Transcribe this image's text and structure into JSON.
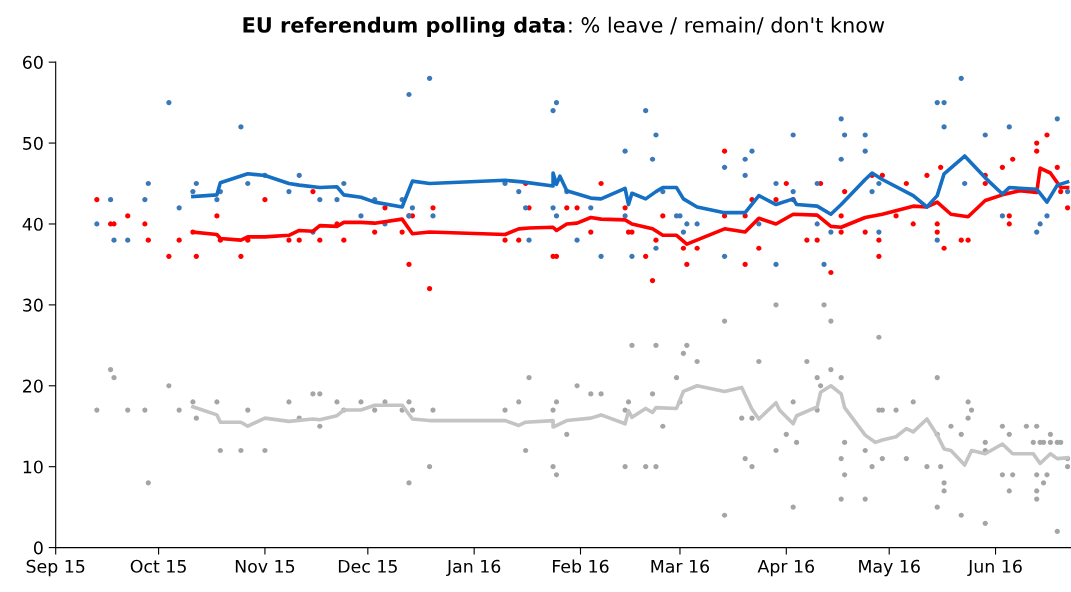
{
  "chart_data": {
    "type": "line",
    "title": "EU referendum polling data: % leave / remain/ don't know",
    "xlim": [
      "2015-09-01",
      "2016-06-23"
    ],
    "xticks": [
      {
        "value": "2015-09-01",
        "label": "Sep 15"
      },
      {
        "value": "2015-10-01",
        "label": "Oct 15"
      },
      {
        "value": "2015-11-01",
        "label": "Nov 15"
      },
      {
        "value": "2015-12-01",
        "label": "Dec 15"
      },
      {
        "value": "2016-01-01",
        "label": "Jan 16"
      },
      {
        "value": "2016-02-01",
        "label": "Feb 16"
      },
      {
        "value": "2016-03-01",
        "label": "Mar 16"
      },
      {
        "value": "2016-04-01",
        "label": "Apr 16"
      },
      {
        "value": "2016-05-01",
        "label": "May 16"
      },
      {
        "value": "2016-06-01",
        "label": "Jun 16"
      }
    ],
    "ylim": [
      0,
      60
    ],
    "yticks": [
      0,
      10,
      20,
      30,
      40,
      50,
      60
    ],
    "series": [
      {
        "type": "scatter",
        "marker": "circle",
        "color": "#ff0000",
        "x": [
          "2015-09-13",
          "2015-09-17",
          "2015-09-18",
          "2015-09-22",
          "2015-09-27",
          "2015-09-28",
          "2015-10-04",
          "2015-10-07",
          "2015-10-11",
          "2015-10-12",
          "2015-10-18",
          "2015-10-19",
          "2015-10-25",
          "2015-10-27",
          "2015-11-01",
          "2015-11-08",
          "2015-11-11",
          "2015-11-15",
          "2015-11-17",
          "2015-11-22",
          "2015-11-24",
          "2015-12-03",
          "2015-12-06",
          "2015-12-11",
          "2015-12-13",
          "2015-12-13",
          "2015-12-14",
          "2015-12-19",
          "2015-12-20",
          "2016-01-10",
          "2016-01-14",
          "2016-01-16",
          "2016-01-17",
          "2016-01-24",
          "2016-01-25",
          "2016-01-28",
          "2016-01-31",
          "2016-02-04",
          "2016-02-07",
          "2016-02-14",
          "2016-02-15",
          "2016-02-16",
          "2016-02-20",
          "2016-02-22",
          "2016-02-23",
          "2016-02-25",
          "2016-03-02",
          "2016-03-03",
          "2016-03-06",
          "2016-03-14",
          "2016-03-14",
          "2016-03-20",
          "2016-03-20",
          "2016-03-22",
          "2016-03-24",
          "2016-03-29",
          "2016-04-01",
          "2016-04-03",
          "2016-04-07",
          "2016-04-10",
          "2016-04-11",
          "2016-04-14",
          "2016-04-17",
          "2016-04-17",
          "2016-04-18",
          "2016-04-24",
          "2016-04-26",
          "2016-04-28",
          "2016-04-28",
          "2016-04-29",
          "2016-05-03",
          "2016-05-06",
          "2016-05-08",
          "2016-05-12",
          "2016-05-15",
          "2016-05-15",
          "2016-05-16",
          "2016-05-17",
          "2016-05-22",
          "2016-05-24",
          "2016-05-29",
          "2016-05-29",
          "2016-06-03",
          "2016-06-06",
          "2016-06-05",
          "2016-06-05",
          "2016-06-13",
          "2016-06-13",
          "2016-06-16",
          "2016-06-19",
          "2016-06-20",
          "2016-06-22"
        ],
        "values": [
          43,
          40,
          40,
          41,
          40,
          38,
          36,
          38,
          39,
          36,
          41,
          38,
          36,
          38,
          43,
          38,
          38,
          44,
          38,
          40,
          38,
          39,
          42,
          39,
          41,
          35,
          41,
          32,
          42,
          38,
          38,
          45,
          42,
          36,
          36,
          42,
          42,
          39,
          45,
          42,
          39,
          39,
          36,
          33,
          38,
          41,
          37,
          35,
          37,
          49,
          41,
          41,
          35,
          43,
          37,
          43,
          45,
          43,
          38,
          38,
          45,
          34,
          41,
          39,
          44,
          39,
          46,
          36,
          38,
          46,
          41,
          45,
          40,
          46,
          39,
          40,
          47,
          37,
          38,
          38,
          46,
          45,
          47,
          48,
          41,
          40,
          50,
          49,
          51,
          47,
          44,
          42
        ]
      },
      {
        "type": "scatter",
        "marker": "circle",
        "color": "#3a78b8",
        "x": [
          "2015-09-13",
          "2015-09-17",
          "2015-09-18",
          "2015-09-22",
          "2015-09-27",
          "2015-09-28",
          "2015-10-04",
          "2015-10-07",
          "2015-10-11",
          "2015-10-12",
          "2015-10-18",
          "2015-10-19",
          "2015-10-25",
          "2015-10-27",
          "2015-11-01",
          "2015-11-08",
          "2015-11-11",
          "2015-11-15",
          "2015-11-17",
          "2015-11-22",
          "2015-11-24",
          "2015-11-29",
          "2015-12-03",
          "2015-12-06",
          "2015-12-11",
          "2015-12-13",
          "2015-12-13",
          "2015-12-14",
          "2015-12-19",
          "2015-12-20",
          "2016-01-10",
          "2016-01-14",
          "2016-01-16",
          "2016-01-17",
          "2016-01-24",
          "2016-01-25",
          "2016-01-24",
          "2016-01-25",
          "2016-01-28",
          "2016-01-31",
          "2016-02-04",
          "2016-02-07",
          "2016-02-14",
          "2016-02-14",
          "2016-02-16",
          "2016-02-20",
          "2016-02-22",
          "2016-02-23",
          "2016-02-23",
          "2016-02-25",
          "2016-02-29",
          "2016-03-01",
          "2016-03-02",
          "2016-03-03",
          "2016-03-06",
          "2016-03-14",
          "2016-03-14",
          "2016-03-20",
          "2016-03-20",
          "2016-03-22",
          "2016-03-24",
          "2016-03-29",
          "2016-03-29",
          "2016-04-03",
          "2016-04-03",
          "2016-04-10",
          "2016-04-10",
          "2016-04-12",
          "2016-04-14",
          "2016-04-17",
          "2016-04-17",
          "2016-04-18",
          "2016-04-24",
          "2016-04-24",
          "2016-04-26",
          "2016-04-28",
          "2016-04-28",
          "2016-05-15",
          "2016-05-17",
          "2016-05-17",
          "2016-05-15",
          "2016-05-22",
          "2016-05-23",
          "2016-05-29",
          "2016-06-03",
          "2016-06-05",
          "2016-06-13",
          "2016-06-14",
          "2016-06-16",
          "2016-06-19",
          "2016-06-22"
        ],
        "values": [
          40,
          43,
          38,
          38,
          43,
          45,
          55,
          42,
          44,
          45,
          43,
          44,
          52,
          45,
          46,
          44,
          46,
          39,
          43,
          43,
          45,
          41,
          43,
          40,
          43,
          56,
          41,
          42,
          58,
          41,
          45,
          44,
          42,
          38,
          54,
          55,
          42,
          41,
          44,
          38,
          42,
          36,
          49,
          41,
          36,
          54,
          48,
          51,
          37,
          44,
          41,
          41,
          39,
          40,
          40,
          47,
          36,
          48,
          46,
          49,
          40,
          45,
          35,
          51,
          44,
          45,
          40,
          35,
          39,
          53,
          48,
          51,
          51,
          49,
          44,
          45,
          39,
          55,
          55,
          52,
          38,
          58,
          45,
          51,
          41,
          52,
          39,
          40,
          41,
          53,
          44
        ]
      },
      {
        "type": "scatter",
        "marker": "circle",
        "color": "#a5a5a5",
        "x": [
          "2015-09-13",
          "2015-09-17",
          "2015-09-18",
          "2015-09-22",
          "2015-09-27",
          "2015-09-28",
          "2015-10-04",
          "2015-10-07",
          "2015-10-11",
          "2015-10-12",
          "2015-10-18",
          "2015-10-19",
          "2015-10-25",
          "2015-10-27",
          "2015-11-01",
          "2015-11-08",
          "2015-11-11",
          "2015-11-15",
          "2015-11-17",
          "2015-11-17",
          "2015-11-22",
          "2015-11-24",
          "2015-11-29",
          "2015-12-03",
          "2015-12-06",
          "2015-12-11",
          "2015-12-13",
          "2015-12-13",
          "2015-12-14",
          "2015-12-19",
          "2015-12-20",
          "2016-01-10",
          "2016-01-14",
          "2016-01-16",
          "2016-01-17",
          "2016-01-24",
          "2016-01-24",
          "2016-01-25",
          "2016-01-25",
          "2016-01-28",
          "2016-01-31",
          "2016-02-04",
          "2016-02-07",
          "2016-02-14",
          "2016-02-14",
          "2016-02-15",
          "2016-02-16",
          "2016-02-20",
          "2016-02-22",
          "2016-02-23",
          "2016-02-23",
          "2016-02-25",
          "2016-02-29",
          "2016-03-01",
          "2016-03-02",
          "2016-03-03",
          "2016-03-06",
          "2016-03-14",
          "2016-03-14",
          "2016-03-19",
          "2016-03-20",
          "2016-03-22",
          "2016-03-22",
          "2016-03-24",
          "2016-03-29",
          "2016-03-29",
          "2016-04-01",
          "2016-04-03",
          "2016-04-03",
          "2016-04-04",
          "2016-04-07",
          "2016-04-10",
          "2016-04-10",
          "2016-04-11",
          "2016-04-12",
          "2016-04-14",
          "2016-04-14",
          "2016-04-17",
          "2016-04-17",
          "2016-04-17",
          "2016-04-18",
          "2016-04-18",
          "2016-04-24",
          "2016-04-24",
          "2016-04-26",
          "2016-04-28",
          "2016-04-28",
          "2016-04-29",
          "2016-04-29",
          "2016-05-03",
          "2016-05-06",
          "2016-05-08",
          "2016-05-12",
          "2016-05-15",
          "2016-05-15",
          "2016-05-15",
          "2016-05-16",
          "2016-05-17",
          "2016-05-17",
          "2016-05-19",
          "2016-05-22",
          "2016-05-22",
          "2016-05-24",
          "2016-05-24",
          "2016-05-25",
          "2016-05-29",
          "2016-05-29",
          "2016-05-29",
          "2016-06-03",
          "2016-06-03",
          "2016-06-05",
          "2016-06-05",
          "2016-06-06",
          "2016-06-10",
          "2016-06-12",
          "2016-06-13",
          "2016-06-13",
          "2016-06-13",
          "2016-06-13",
          "2016-06-14",
          "2016-06-15",
          "2016-06-15",
          "2016-06-16",
          "2016-06-17",
          "2016-06-17",
          "2016-06-19",
          "2016-06-20",
          "2016-06-19",
          "2016-06-22",
          "2016-06-22"
        ],
        "values": [
          17,
          22,
          21,
          17,
          17,
          8,
          20,
          17,
          18,
          16,
          18,
          12,
          12,
          17,
          12,
          18,
          16,
          19,
          19,
          15,
          18,
          17,
          18,
          17,
          18,
          17,
          18,
          8,
          17,
          10,
          17,
          17,
          18,
          12,
          21,
          17,
          10,
          18,
          9,
          14,
          20,
          19,
          19,
          17,
          10,
          18,
          25,
          10,
          19,
          25,
          10,
          15,
          21,
          18,
          24,
          25,
          23,
          28,
          4,
          16,
          11,
          10,
          16,
          23,
          30,
          12,
          14,
          18,
          5,
          13,
          23,
          21,
          17,
          20,
          30,
          28,
          22,
          21,
          11,
          6,
          13,
          9,
          12,
          6,
          10,
          26,
          17,
          17,
          11,
          17,
          11,
          18,
          10,
          21,
          14,
          5,
          10,
          8,
          7,
          15,
          14,
          4,
          18,
          16,
          17,
          13,
          12,
          3,
          15,
          9,
          14,
          7,
          9,
          15,
          13,
          15,
          9,
          7,
          6,
          13,
          13,
          8,
          9,
          14,
          13,
          13,
          13,
          2,
          10,
          11
        ]
      },
      {
        "color": "#ff0000",
        "x": [
          "2015-10-11",
          "2015-10-18",
          "2015-10-19",
          "2015-10-25",
          "2015-10-27",
          "2015-11-01",
          "2015-11-08",
          "2015-11-11",
          "2015-11-15",
          "2015-11-17",
          "2015-11-22",
          "2015-11-24",
          "2015-11-29",
          "2015-12-03",
          "2015-12-11",
          "2015-12-14",
          "2015-12-19",
          "2016-01-10",
          "2016-01-14",
          "2016-01-17",
          "2016-01-24",
          "2016-01-25",
          "2016-01-28",
          "2016-01-31",
          "2016-02-04",
          "2016-02-07",
          "2016-02-14",
          "2016-02-16",
          "2016-02-22",
          "2016-02-25",
          "2016-02-29",
          "2016-03-03",
          "2016-03-14",
          "2016-03-20",
          "2016-03-24",
          "2016-03-29",
          "2016-04-03",
          "2016-04-10",
          "2016-04-14",
          "2016-04-17",
          "2016-04-24",
          "2016-04-29",
          "2016-05-08",
          "2016-05-12",
          "2016-05-15",
          "2016-05-19",
          "2016-05-24",
          "2016-05-29",
          "2016-06-03",
          "2016-06-08",
          "2016-06-13",
          "2016-06-14",
          "2016-06-17",
          "2016-06-20",
          "2016-06-22"
        ],
        "values": [
          39,
          38.7,
          38.2,
          38,
          38.4,
          38.4,
          38.6,
          39.2,
          39.1,
          39.8,
          39.7,
          40.2,
          40.2,
          40.1,
          40.6,
          38.8,
          39,
          38.7,
          39.4,
          39.5,
          39.6,
          39.2,
          40,
          40.1,
          40.8,
          40.6,
          40.5,
          40,
          39.4,
          38.6,
          38.6,
          37.5,
          39.4,
          39,
          40.7,
          40,
          41.2,
          41.1,
          39.7,
          39.6,
          40.8,
          41.2,
          42.2,
          42.1,
          42.7,
          41.2,
          40.9,
          42.9,
          43.6,
          44.1,
          43.9,
          46.9,
          46.3,
          44.5,
          44.5
        ]
      },
      {
        "color": "#1570c4",
        "x": [
          "2015-10-11",
          "2015-10-18",
          "2015-10-19",
          "2015-10-27",
          "2015-11-01",
          "2015-11-08",
          "2015-11-11",
          "2015-11-17",
          "2015-11-22",
          "2015-11-24",
          "2015-11-29",
          "2015-12-03",
          "2015-12-11",
          "2015-12-14",
          "2015-12-19",
          "2016-01-10",
          "2016-01-15",
          "2016-01-24",
          "2016-01-24",
          "2016-01-25",
          "2016-01-26",
          "2016-01-28",
          "2016-02-04",
          "2016-02-07",
          "2016-02-14",
          "2016-02-15",
          "2016-02-16",
          "2016-02-20",
          "2016-02-23",
          "2016-02-25",
          "2016-02-29",
          "2016-03-02",
          "2016-03-06",
          "2016-03-14",
          "2016-03-20",
          "2016-03-24",
          "2016-03-29",
          "2016-04-03",
          "2016-04-04",
          "2016-04-10",
          "2016-04-14",
          "2016-04-17",
          "2016-04-24",
          "2016-04-26",
          "2016-04-29",
          "2016-05-08",
          "2016-05-12",
          "2016-05-15",
          "2016-05-17",
          "2016-05-23",
          "2016-05-29",
          "2016-06-03",
          "2016-06-05",
          "2016-06-13",
          "2016-06-16",
          "2016-06-19",
          "2016-06-22"
        ],
        "values": [
          43.4,
          43.6,
          45.1,
          46.2,
          46,
          45,
          44.8,
          44.5,
          44.6,
          43.6,
          43.3,
          42.7,
          42.1,
          45.3,
          45,
          45.4,
          45.2,
          44.7,
          46.3,
          44.9,
          45.9,
          44.1,
          43.2,
          43.1,
          44.4,
          42.4,
          43.8,
          43.1,
          44,
          44.5,
          44.5,
          43.1,
          42.1,
          41.4,
          41.4,
          43.5,
          42.4,
          43.1,
          42.4,
          42.2,
          41.2,
          42.4,
          45.5,
          46.3,
          45.5,
          43.5,
          42.1,
          43.5,
          46.2,
          48.4,
          45.7,
          43.7,
          44.5,
          44.3,
          42.7,
          44.8,
          45.2
        ]
      },
      {
        "color": "#c4c4c4",
        "x": [
          "2015-10-11",
          "2015-10-18",
          "2015-10-19",
          "2015-10-25",
          "2015-10-27",
          "2015-11-01",
          "2015-11-08",
          "2015-11-15",
          "2015-11-17",
          "2015-11-22",
          "2015-11-24",
          "2015-11-29",
          "2015-12-03",
          "2015-12-11",
          "2015-12-14",
          "2015-12-19",
          "2016-01-10",
          "2016-01-14",
          "2016-01-16",
          "2016-01-24",
          "2016-01-24",
          "2016-01-28",
          "2016-02-04",
          "2016-02-07",
          "2016-02-14",
          "2016-02-15",
          "2016-02-16",
          "2016-02-20",
          "2016-02-22",
          "2016-02-23",
          "2016-02-29",
          "2016-03-02",
          "2016-03-06",
          "2016-03-14",
          "2016-03-19",
          "2016-03-22",
          "2016-03-24",
          "2016-03-29",
          "2016-03-30",
          "2016-04-03",
          "2016-04-04",
          "2016-04-10",
          "2016-04-11",
          "2016-04-14",
          "2016-04-17",
          "2016-04-18",
          "2016-04-24",
          "2016-04-27",
          "2016-04-29",
          "2016-05-03",
          "2016-05-06",
          "2016-05-08",
          "2016-05-12",
          "2016-05-15",
          "2016-05-17",
          "2016-05-19",
          "2016-05-23",
          "2016-05-25",
          "2016-05-29",
          "2016-06-03",
          "2016-06-06",
          "2016-06-12",
          "2016-06-14",
          "2016-06-17",
          "2016-06-19",
          "2016-06-22"
        ],
        "values": [
          17.4,
          16.4,
          15.5,
          15.5,
          15,
          16,
          15.6,
          15.9,
          15.8,
          16.3,
          17,
          17,
          17.6,
          17.6,
          15.9,
          15.7,
          15.7,
          15.1,
          15.5,
          15.7,
          14.9,
          15.7,
          16,
          16.4,
          15.3,
          16.9,
          16.1,
          17.2,
          16.7,
          17.3,
          17.2,
          19.3,
          20,
          19.3,
          19.8,
          17.1,
          15.9,
          17.9,
          17,
          15.3,
          16.3,
          17.4,
          19.2,
          20,
          19,
          17.3,
          13.9,
          13,
          13.3,
          13.7,
          14.7,
          14.3,
          15.9,
          13.9,
          12.2,
          12,
          10.2,
          12,
          11.6,
          12.8,
          11.6,
          11.6,
          10.4,
          11.6,
          11,
          11.1
        ]
      }
    ]
  }
}
